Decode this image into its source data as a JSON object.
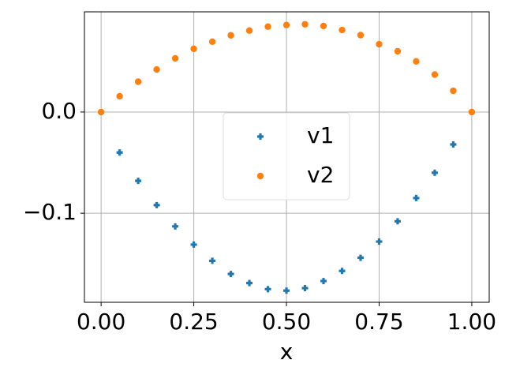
{
  "chart_data": {
    "type": "scatter",
    "xlabel": "x",
    "x": [
      0,
      0.05,
      0.1,
      0.15,
      0.2,
      0.25,
      0.3,
      0.35,
      0.4,
      0.45,
      0.5,
      0.55,
      0.6,
      0.65,
      0.7,
      0.75,
      0.8,
      0.85,
      0.9,
      0.95,
      1.0
    ],
    "series": [
      {
        "name": "v1",
        "color": "#1f77b4",
        "marker": "plus",
        "values": [
          0,
          -0.04,
          -0.068,
          -0.092,
          -0.113,
          -0.131,
          -0.147,
          -0.16,
          -0.169,
          -0.175,
          -0.1765,
          -0.174,
          -0.167,
          -0.157,
          -0.144,
          -0.128,
          -0.108,
          -0.085,
          -0.06,
          -0.032,
          0
        ]
      },
      {
        "name": "v2",
        "color": "#ff7f0e",
        "marker": "circle",
        "values": [
          0,
          0.0156,
          0.03,
          0.042,
          0.053,
          0.0625,
          0.0695,
          0.0758,
          0.0805,
          0.0844,
          0.086,
          0.0867,
          0.085,
          0.081,
          0.076,
          0.067,
          0.06,
          0.05,
          0.037,
          0.021,
          0
        ]
      }
    ],
    "xlim": [
      -0.045,
      1.047
    ],
    "ylim": [
      -0.188,
      0.099
    ],
    "xticks": [
      {
        "value": 0,
        "label": "0.00"
      },
      {
        "value": 0.25,
        "label": "0.25"
      },
      {
        "value": 0.5,
        "label": "0.50"
      },
      {
        "value": 0.75,
        "label": "0.75"
      },
      {
        "value": 1,
        "label": "1.00"
      }
    ],
    "yticks": [
      {
        "value": -0.1,
        "label": "−0.1"
      },
      {
        "value": 0,
        "label": "0.0"
      }
    ],
    "grid": true,
    "legend": "center"
  }
}
